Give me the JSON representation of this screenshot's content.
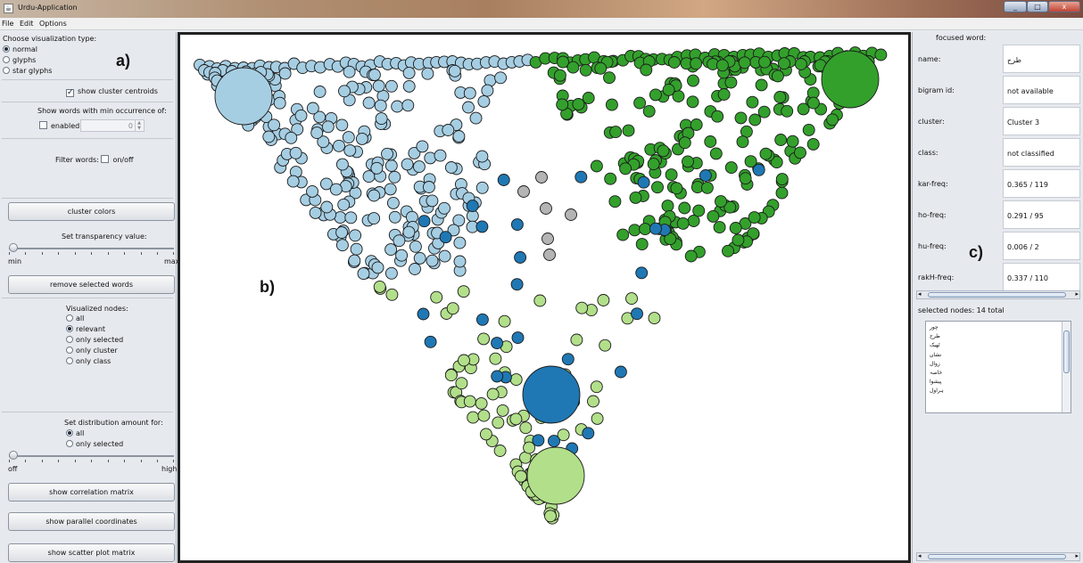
{
  "window": {
    "title": "Urdu-Application",
    "min_label": "_",
    "max_label": "□",
    "close_label": "x"
  },
  "menu": [
    "File",
    "Edit",
    "Options"
  ],
  "left": {
    "vis_type_label": "Choose visualization type:",
    "vis_types": [
      {
        "label": "normal",
        "selected": true
      },
      {
        "label": "glyphs",
        "selected": false
      },
      {
        "label": "star glyphs",
        "selected": false
      }
    ],
    "show_centroids_label": "show cluster centroids",
    "min_occurrence_label": "Show words with min occurrence of:",
    "enabled_label": "enabled",
    "min_occurrence_value": "0",
    "filter_label": "Filter words:",
    "filter_toggle_label": "on/off",
    "cluster_colors_label": "cluster colors",
    "transparency_label": "Set transparency value:",
    "slider_min": "min",
    "slider_max": "max",
    "remove_selected_label": "remove selected words",
    "visualized_nodes_label": "Visualized nodes:",
    "node_options": [
      {
        "label": "all",
        "selected": false
      },
      {
        "label": "relevant",
        "selected": true
      },
      {
        "label": "only selected",
        "selected": false
      },
      {
        "label": "only cluster",
        "selected": false
      },
      {
        "label": "only class",
        "selected": false
      }
    ],
    "distribution_label": "Set distribution amount for:",
    "distribution_options": [
      {
        "label": "all",
        "selected": true
      },
      {
        "label": "only selected",
        "selected": false
      }
    ],
    "dist_min": "off",
    "dist_max": "high",
    "correlation_label": "show correlation matrix",
    "parallel_label": "show parallel coordinates",
    "scatter_label": "show scatter plot matrix"
  },
  "annotations": {
    "a": "a)",
    "b": "b)",
    "c": "c)"
  },
  "right": {
    "focused_header": "focused word:",
    "fields": [
      {
        "label": "name:",
        "value": "طرح"
      },
      {
        "label": "bigram id:",
        "value": "not available"
      },
      {
        "label": "cluster:",
        "value": "Cluster 3"
      },
      {
        "label": "class:",
        "value": "not classified"
      },
      {
        "label": "kar-freq:",
        "value": "0.365 / 119"
      },
      {
        "label": "ho-freq:",
        "value": "0.291 / 95"
      },
      {
        "label": "hu-freq:",
        "value": "0.006 / 2"
      },
      {
        "label": "rakH-freq:",
        "value": "0.337 / 110"
      }
    ],
    "selected_header": "selected nodes: 14 total",
    "selected_items": [
      "چور",
      "طرح",
      "ٹھیک",
      "نشان",
      "زوال",
      "خاصہ",
      "پیشوا",
      "ہراول"
    ]
  },
  "colors": {
    "light_blue": "#a6cee3",
    "dark_blue": "#1f78b4",
    "light_green": "#b2df8a",
    "dark_green": "#33a02c",
    "gray": "#b4b4b4"
  }
}
